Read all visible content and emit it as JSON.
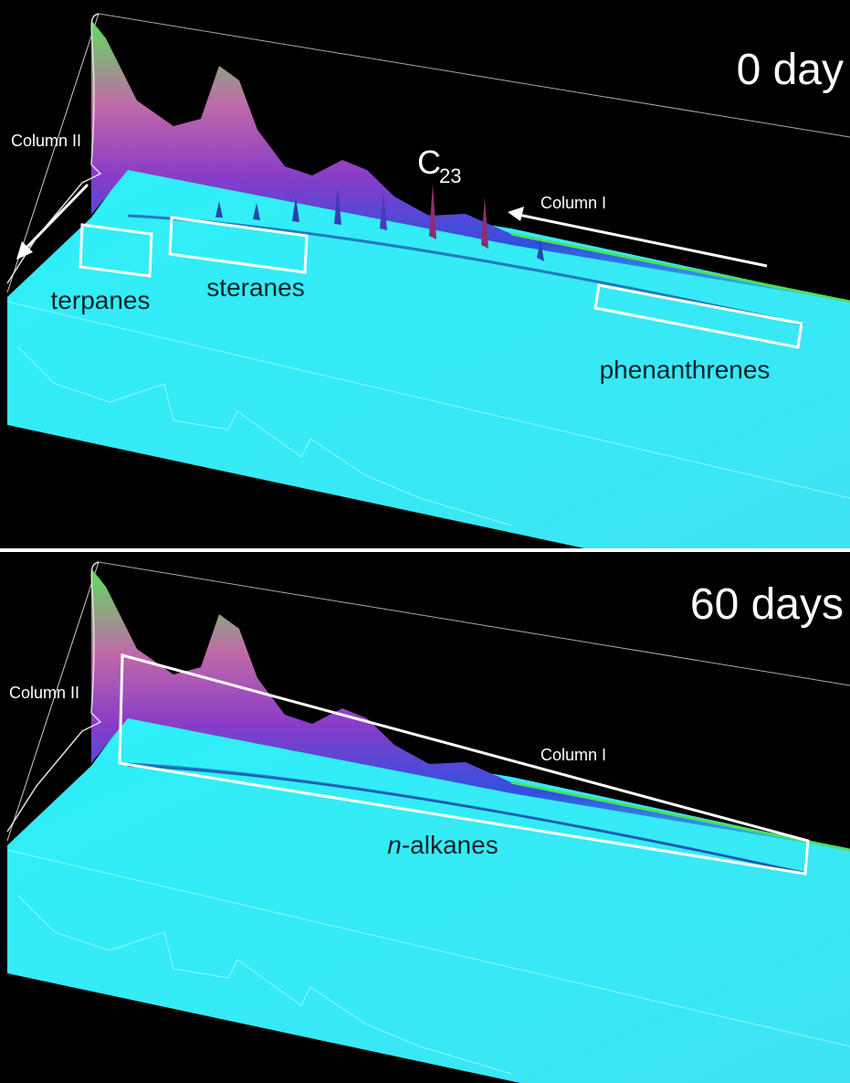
{
  "panels": [
    {
      "title": "0 day",
      "column_2": "Column II",
      "column_1": "Column I",
      "peak": {
        "label": "C",
        "subscript": "23"
      },
      "regions": [
        "terpanes",
        "steranes",
        "phenanthrenes"
      ]
    },
    {
      "title": "60 days",
      "column_2": "Column II",
      "column_1": "Column I",
      "region": {
        "prefix": "n",
        "label": "-alkanes"
      }
    }
  ]
}
